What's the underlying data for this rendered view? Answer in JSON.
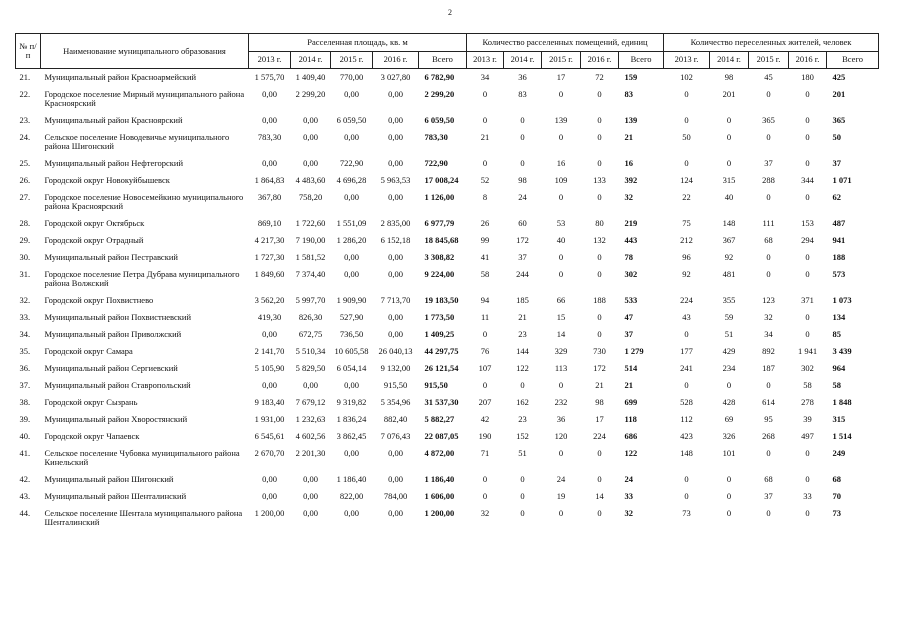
{
  "page_number": "2",
  "table": {
    "headers": {
      "number": "№ п/п",
      "name": "Наименование муниципального образования",
      "groups": [
        {
          "title": "Расселенная площадь, кв. м",
          "columns": [
            "2013 г.",
            "2014 г.",
            "2015 г.",
            "2016 г.",
            "Всего"
          ]
        },
        {
          "title": "Количество расселенных помещений, единиц",
          "columns": [
            "2013 г.",
            "2014 г.",
            "2015 г.",
            "2016 г.",
            "Всего"
          ]
        },
        {
          "title": "Количество переселенных жителей, человек",
          "columns": [
            "2013 г.",
            "2014 г.",
            "2015 г.",
            "2016 г.",
            "Всего"
          ]
        }
      ]
    },
    "rows": [
      [
        "21.",
        "Муниципальный район Красноармейский",
        "1 575,70",
        "1 409,40",
        "770,00",
        "3 027,80",
        "6 782,90",
        "34",
        "36",
        "17",
        "72",
        "159",
        "102",
        "98",
        "45",
        "180",
        "425"
      ],
      [
        "22.",
        "Городское поселение Мирный муниципального района Красноярский",
        "0,00",
        "2 299,20",
        "0,00",
        "0,00",
        "2 299,20",
        "0",
        "83",
        "0",
        "0",
        "83",
        "0",
        "201",
        "0",
        "0",
        "201"
      ],
      [
        "23.",
        "Муниципальный район Красноярский",
        "0,00",
        "0,00",
        "6 059,50",
        "0,00",
        "6 059,50",
        "0",
        "0",
        "139",
        "0",
        "139",
        "0",
        "0",
        "365",
        "0",
        "365"
      ],
      [
        "24.",
        "Сельское поселение Новодевичье муниципального района Шигонский",
        "783,30",
        "0,00",
        "0,00",
        "0,00",
        "783,30",
        "21",
        "0",
        "0",
        "0",
        "21",
        "50",
        "0",
        "0",
        "0",
        "50"
      ],
      [
        "25.",
        "Муниципальный район Нефтегорский",
        "0,00",
        "0,00",
        "722,90",
        "0,00",
        "722,90",
        "0",
        "0",
        "16",
        "0",
        "16",
        "0",
        "0",
        "37",
        "0",
        "37"
      ],
      [
        "26.",
        "Городской округ Новокуйбышевск",
        "1 864,83",
        "4 483,60",
        "4 696,28",
        "5 963,53",
        "17 008,24",
        "52",
        "98",
        "109",
        "133",
        "392",
        "124",
        "315",
        "288",
        "344",
        "1 071"
      ],
      [
        "27.",
        "Городское поселение Новосемейкино муниципального района Красноярский",
        "367,80",
        "758,20",
        "0,00",
        "0,00",
        "1 126,00",
        "8",
        "24",
        "0",
        "0",
        "32",
        "22",
        "40",
        "0",
        "0",
        "62"
      ],
      [
        "28.",
        "Городской округ Октябрьск",
        "869,10",
        "1 722,60",
        "1 551,09",
        "2 835,00",
        "6 977,79",
        "26",
        "60",
        "53",
        "80",
        "219",
        "75",
        "148",
        "111",
        "153",
        "487"
      ],
      [
        "29.",
        "Городской округ Отрадный",
        "4 217,30",
        "7 190,00",
        "1 286,20",
        "6 152,18",
        "18 845,68",
        "99",
        "172",
        "40",
        "132",
        "443",
        "212",
        "367",
        "68",
        "294",
        "941"
      ],
      [
        "30.",
        "Муниципальный район Пестравский",
        "1 727,30",
        "1 581,52",
        "0,00",
        "0,00",
        "3 308,82",
        "41",
        "37",
        "0",
        "0",
        "78",
        "96",
        "92",
        "0",
        "0",
        "188"
      ],
      [
        "31.",
        "Городское поселение Петра Дубрава муниципального района Волжский",
        "1 849,60",
        "7 374,40",
        "0,00",
        "0,00",
        "9 224,00",
        "58",
        "244",
        "0",
        "0",
        "302",
        "92",
        "481",
        "0",
        "0",
        "573"
      ],
      [
        "32.",
        "Городской округ Похвистнево",
        "3 562,20",
        "5 997,70",
        "1 909,90",
        "7 713,70",
        "19 183,50",
        "94",
        "185",
        "66",
        "188",
        "533",
        "224",
        "355",
        "123",
        "371",
        "1 073"
      ],
      [
        "33.",
        "Муниципальный район Похвистневский",
        "419,30",
        "826,30",
        "527,90",
        "0,00",
        "1 773,50",
        "11",
        "21",
        "15",
        "0",
        "47",
        "43",
        "59",
        "32",
        "0",
        "134"
      ],
      [
        "34.",
        "Муниципальный район Приволжский",
        "0,00",
        "672,75",
        "736,50",
        "0,00",
        "1 409,25",
        "0",
        "23",
        "14",
        "0",
        "37",
        "0",
        "51",
        "34",
        "0",
        "85"
      ],
      [
        "35.",
        "Городской округ Самара",
        "2 141,70",
        "5 510,34",
        "10 605,58",
        "26 040,13",
        "44 297,75",
        "76",
        "144",
        "329",
        "730",
        "1 279",
        "177",
        "429",
        "892",
        "1 941",
        "3 439"
      ],
      [
        "36.",
        "Муниципальный район Сергиевский",
        "5 105,90",
        "5 829,50",
        "6 054,14",
        "9 132,00",
        "26 121,54",
        "107",
        "122",
        "113",
        "172",
        "514",
        "241",
        "234",
        "187",
        "302",
        "964"
      ],
      [
        "37.",
        "Муниципальный район Ставропольский",
        "0,00",
        "0,00",
        "0,00",
        "915,50",
        "915,50",
        "0",
        "0",
        "0",
        "21",
        "21",
        "0",
        "0",
        "0",
        "58",
        "58"
      ],
      [
        "38.",
        "Городской округ Сызрань",
        "9 183,40",
        "7 679,12",
        "9 319,82",
        "5 354,96",
        "31 537,30",
        "207",
        "162",
        "232",
        "98",
        "699",
        "528",
        "428",
        "614",
        "278",
        "1 848"
      ],
      [
        "39.",
        "Муниципальный район Хворостянский",
        "1 931,00",
        "1 232,63",
        "1 836,24",
        "882,40",
        "5 882,27",
        "42",
        "23",
        "36",
        "17",
        "118",
        "112",
        "69",
        "95",
        "39",
        "315"
      ],
      [
        "40.",
        "Городской округ Чапаевск",
        "6 545,61",
        "4 602,56",
        "3 862,45",
        "7 076,43",
        "22 087,05",
        "190",
        "152",
        "120",
        "224",
        "686",
        "423",
        "326",
        "268",
        "497",
        "1 514"
      ],
      [
        "41.",
        "Сельское поселение Чубовка муниципального района Кинельский",
        "2 670,70",
        "2 201,30",
        "0,00",
        "0,00",
        "4 872,00",
        "71",
        "51",
        "0",
        "0",
        "122",
        "148",
        "101",
        "0",
        "0",
        "249"
      ],
      [
        "42.",
        "Муниципальный район Шигонский",
        "0,00",
        "0,00",
        "1 186,40",
        "0,00",
        "1 186,40",
        "0",
        "0",
        "24",
        "0",
        "24",
        "0",
        "0",
        "68",
        "0",
        "68"
      ],
      [
        "43.",
        "Муниципальный район Шенталинский",
        "0,00",
        "0,00",
        "822,00",
        "784,00",
        "1 606,00",
        "0",
        "0",
        "19",
        "14",
        "33",
        "0",
        "0",
        "37",
        "33",
        "70"
      ],
      [
        "44.",
        "Сельское поселение Шентала муниципального района Шенталинский",
        "1 200,00",
        "0,00",
        "0,00",
        "0,00",
        "1 200,00",
        "32",
        "0",
        "0",
        "0",
        "32",
        "73",
        "0",
        "0",
        "0",
        "73"
      ]
    ]
  }
}
